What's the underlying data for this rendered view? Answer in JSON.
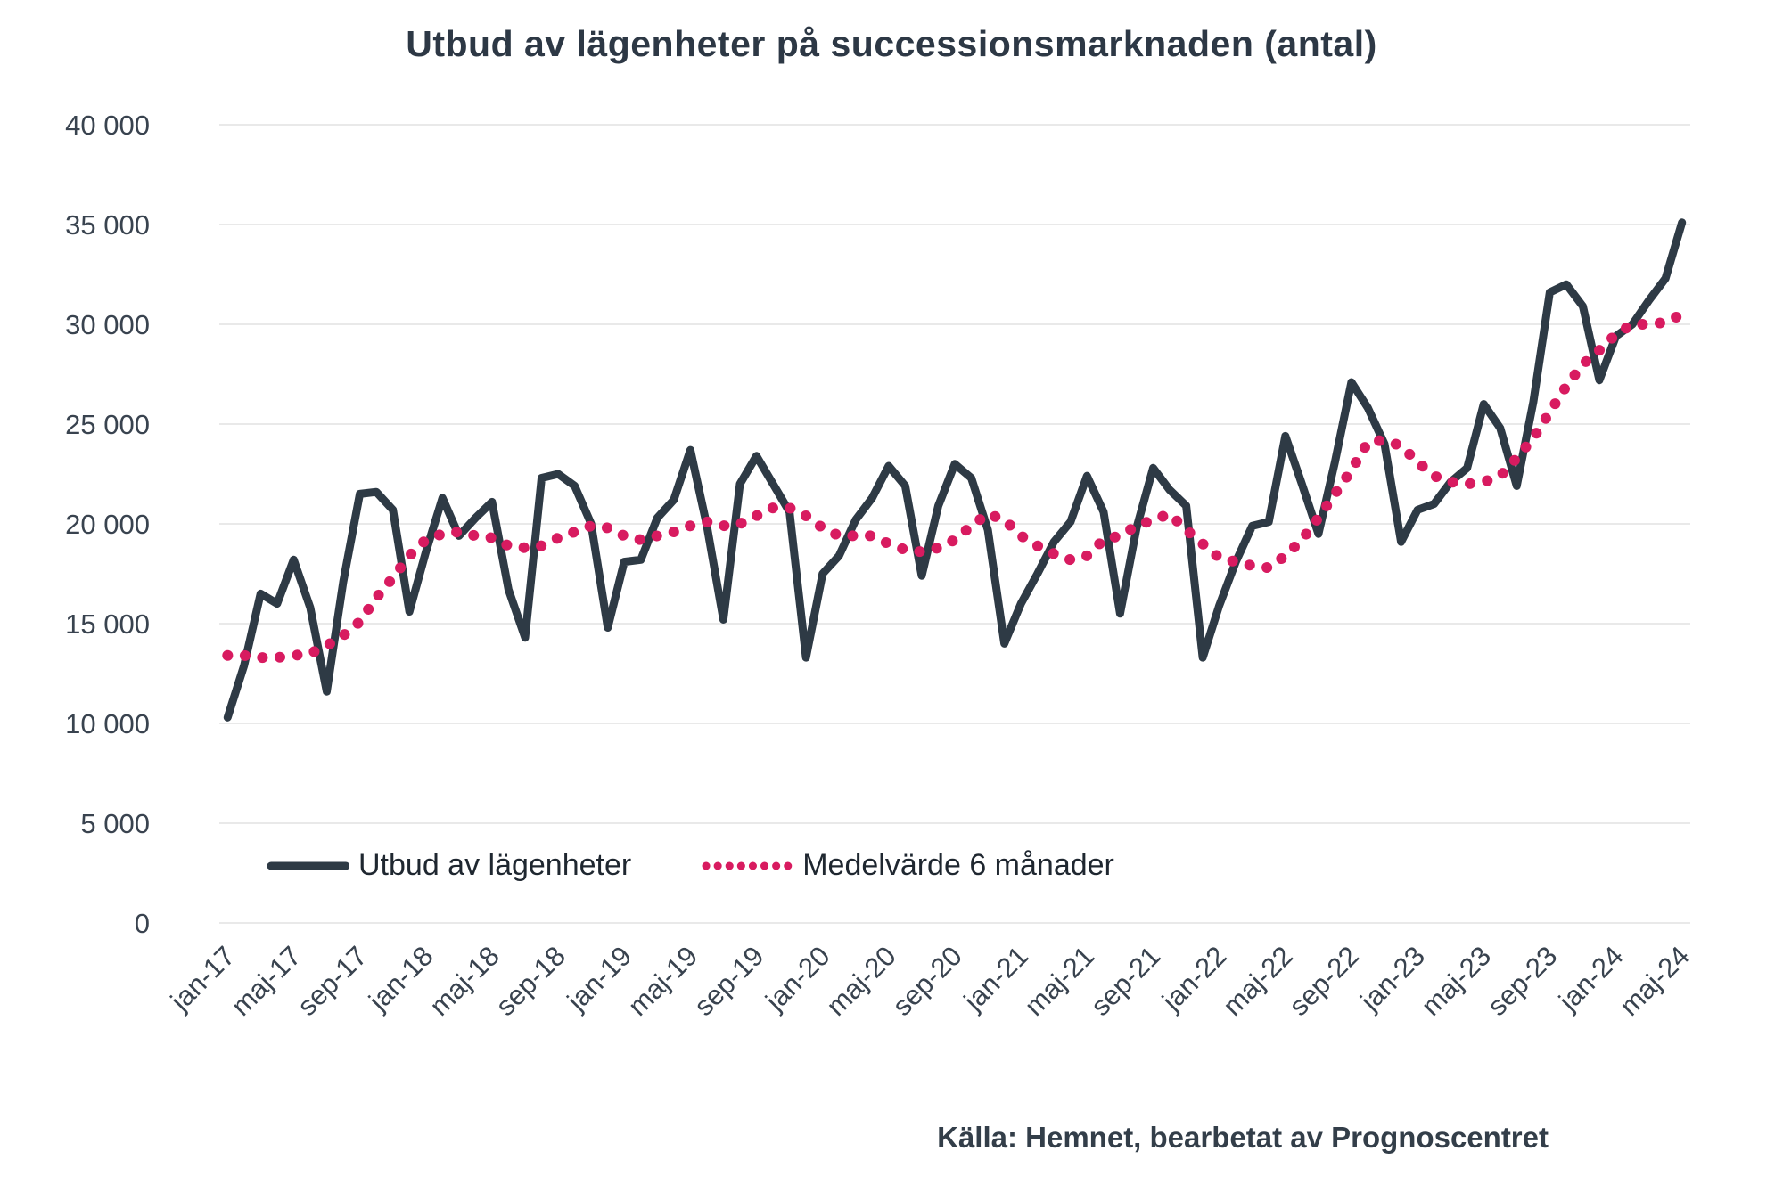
{
  "title": "Utbud av lägenheter på successionsmarknaden (antal)",
  "source": "Källa: Hemnet, bearbetat av Prognoscentret",
  "colors": {
    "supply_line": "#2e3a45",
    "average_line": "#d81b60",
    "grid": "#e9e9e9",
    "tick_text": "#39434f",
    "title_text": "#2d3845"
  },
  "chart_data": {
    "type": "line",
    "title": "Utbud av lägenheter på successionsmarknaden (antal)",
    "source": "Källa: Hemnet, bearbetat av Prognoscentret",
    "xlabel": "",
    "ylabel": "",
    "ylim": [
      0,
      40000
    ],
    "ytick_step": 5000,
    "y_tick_labels": [
      "0",
      "5 000",
      "10 000",
      "15 000",
      "20 000",
      "25 000",
      "30 000",
      "35 000",
      "40 000"
    ],
    "grid": true,
    "legend_position": "bottom-inside",
    "x_tick_every": 4,
    "x": [
      "jan-17",
      "feb-17",
      "mar-17",
      "apr-17",
      "maj-17",
      "jun-17",
      "jul-17",
      "aug-17",
      "sep-17",
      "okt-17",
      "nov-17",
      "dec-17",
      "jan-18",
      "feb-18",
      "mar-18",
      "apr-18",
      "maj-18",
      "jun-18",
      "jul-18",
      "aug-18",
      "sep-18",
      "okt-18",
      "nov-18",
      "dec-18",
      "jan-19",
      "feb-19",
      "mar-19",
      "apr-19",
      "maj-19",
      "jun-19",
      "jul-19",
      "aug-19",
      "sep-19",
      "okt-19",
      "nov-19",
      "dec-19",
      "jan-20",
      "feb-20",
      "mar-20",
      "apr-20",
      "maj-20",
      "jun-20",
      "jul-20",
      "aug-20",
      "sep-20",
      "okt-20",
      "nov-20",
      "dec-20",
      "jan-21",
      "feb-21",
      "mar-21",
      "apr-21",
      "maj-21",
      "jun-21",
      "jul-21",
      "aug-21",
      "sep-21",
      "okt-21",
      "nov-21",
      "dec-21",
      "jan-22",
      "feb-22",
      "mar-22",
      "apr-22",
      "maj-22",
      "jun-22",
      "jul-22",
      "aug-22",
      "sep-22",
      "okt-22",
      "nov-22",
      "dec-22",
      "jan-23",
      "feb-23",
      "mar-23",
      "apr-23",
      "maj-23",
      "jun-23",
      "jul-23",
      "aug-23",
      "sep-23",
      "okt-23",
      "nov-23",
      "dec-23",
      "jan-24",
      "feb-24",
      "mar-24",
      "apr-24",
      "maj-24"
    ],
    "series": [
      {
        "name": "Utbud av lägenheter",
        "color": "#2e3a45",
        "style": "solid",
        "values": [
          10300,
          12900,
          16500,
          16000,
          18200,
          15800,
          11600,
          17100,
          21500,
          21600,
          20700,
          15600,
          18600,
          21300,
          19400,
          20300,
          21100,
          16700,
          14300,
          22300,
          22500,
          21900,
          20000,
          14800,
          18100,
          18200,
          20300,
          21200,
          23700,
          19900,
          15200,
          22000,
          23400,
          22000,
          20600,
          13300,
          17500,
          18400,
          20200,
          21300,
          22900,
          21900,
          17400,
          20900,
          23000,
          22300,
          19700,
          14000,
          16000,
          17500,
          19100,
          20100,
          22400,
          20600,
          15500,
          19800,
          22800,
          21700,
          20900,
          13300,
          15900,
          18100,
          19900,
          20100,
          24400,
          22000,
          19500,
          23100,
          27100,
          25800,
          24000,
          19100,
          20700,
          21000,
          22100,
          22800,
          26000,
          24800,
          21900,
          26100,
          31600,
          32000,
          30900,
          27200,
          29400,
          30000,
          31200,
          32300,
          35100
        ]
      },
      {
        "name": "Medelvärde 6 månader",
        "color": "#d81b60",
        "style": "dotted",
        "values": [
          13400,
          13400,
          13300,
          13300,
          13400,
          13500,
          13900,
          14400,
          15100,
          16300,
          17300,
          18400,
          19200,
          19500,
          19600,
          19400,
          19300,
          18900,
          18800,
          18900,
          19300,
          19600,
          19900,
          19800,
          19400,
          19200,
          19400,
          19600,
          19900,
          20100,
          19900,
          20000,
          20400,
          20800,
          20800,
          20400,
          19800,
          19400,
          19400,
          19400,
          19000,
          18700,
          18600,
          18800,
          19200,
          19900,
          20500,
          20200,
          19400,
          18900,
          18500,
          18200,
          18400,
          19200,
          19400,
          19900,
          20200,
          20500,
          19700,
          19000,
          18300,
          18100,
          17900,
          17800,
          18400,
          19200,
          20300,
          21500,
          22700,
          24100,
          24200,
          23900,
          23100,
          22400,
          22100,
          22000,
          22100,
          22400,
          23300,
          24300,
          25600,
          26900,
          28000,
          28700,
          29500,
          30000,
          30000,
          30100,
          30500
        ]
      }
    ]
  }
}
